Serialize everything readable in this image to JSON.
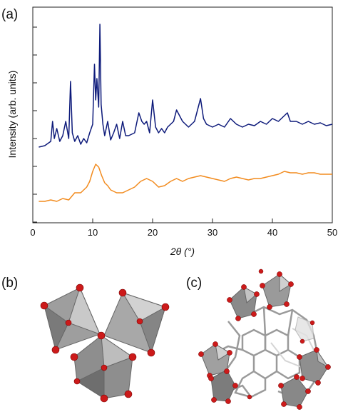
{
  "panels": {
    "a": "(a)",
    "b": "(b)",
    "c": "(c)"
  },
  "chart_data": {
    "type": "line",
    "xlabel": "2θ (°)",
    "ylabel": "Intensity (arb. units)",
    "xlim": [
      0,
      50
    ],
    "xticks": [
      0,
      10,
      20,
      30,
      40,
      50
    ],
    "ytick_labels": false,
    "grid": false,
    "series": [
      {
        "color": "#0d1a7a",
        "x": [
          1,
          2,
          3,
          3.3,
          3.6,
          4,
          4.5,
          5,
          5.5,
          6,
          6.3,
          6.6,
          7,
          7.5,
          8,
          8.5,
          9,
          9.5,
          10,
          10.3,
          10.5,
          10.7,
          11,
          11.2,
          11.4,
          11.7,
          12,
          12.5,
          13,
          13.5,
          14,
          14.5,
          15,
          15.5,
          16,
          17,
          17.7,
          18.2,
          18.6,
          19,
          19.5,
          20,
          20.5,
          21,
          21.5,
          22,
          22.5,
          23,
          23.5,
          24,
          25,
          26,
          27,
          27.5,
          28,
          28.5,
          29,
          30,
          31,
          32,
          33,
          34,
          35,
          36,
          37,
          38,
          39,
          40,
          41,
          42,
          42.5,
          43,
          44,
          45,
          46,
          47,
          48,
          49,
          50
        ],
        "y": [
          0.12,
          0.13,
          0.16,
          0.3,
          0.18,
          0.25,
          0.16,
          0.2,
          0.3,
          0.18,
          0.58,
          0.22,
          0.16,
          0.2,
          0.14,
          0.18,
          0.15,
          0.22,
          0.28,
          0.7,
          0.45,
          0.6,
          0.4,
          0.98,
          0.42,
          0.28,
          0.2,
          0.3,
          0.17,
          0.22,
          0.28,
          0.18,
          0.3,
          0.2,
          0.2,
          0.22,
          0.36,
          0.3,
          0.28,
          0.3,
          0.22,
          0.45,
          0.26,
          0.22,
          0.25,
          0.22,
          0.26,
          0.28,
          0.3,
          0.38,
          0.3,
          0.26,
          0.3,
          0.38,
          0.46,
          0.32,
          0.28,
          0.26,
          0.28,
          0.26,
          0.32,
          0.28,
          0.26,
          0.28,
          0.27,
          0.3,
          0.28,
          0.32,
          0.3,
          0.34,
          0.36,
          0.3,
          0.3,
          0.28,
          0.3,
          0.28,
          0.29,
          0.27,
          0.28
        ]
      },
      {
        "color": "#f28b1e",
        "x": [
          1,
          2,
          3,
          4,
          5,
          6,
          7,
          8,
          9,
          9.5,
          10,
          10.5,
          11,
          11.5,
          12,
          12.5,
          13,
          14,
          15,
          16,
          17,
          18,
          19,
          20,
          21,
          22,
          23,
          24,
          25,
          26,
          27,
          28,
          29,
          30,
          31,
          32,
          33,
          34,
          35,
          36,
          37,
          38,
          39,
          40,
          41,
          42,
          43,
          44,
          45,
          46,
          47,
          48,
          49,
          50
        ],
        "y": [
          -0.26,
          -0.26,
          -0.25,
          -0.26,
          -0.24,
          -0.25,
          -0.2,
          -0.2,
          -0.16,
          -0.12,
          -0.05,
          0.0,
          -0.02,
          -0.08,
          -0.13,
          -0.15,
          -0.18,
          -0.2,
          -0.2,
          -0.18,
          -0.16,
          -0.12,
          -0.1,
          -0.12,
          -0.16,
          -0.15,
          -0.12,
          -0.1,
          -0.12,
          -0.1,
          -0.09,
          -0.08,
          -0.09,
          -0.1,
          -0.11,
          -0.12,
          -0.1,
          -0.09,
          -0.1,
          -0.11,
          -0.1,
          -0.1,
          -0.09,
          -0.08,
          -0.07,
          -0.05,
          -0.06,
          -0.06,
          -0.07,
          -0.06,
          -0.06,
          -0.07,
          -0.07,
          -0.07
        ]
      }
    ]
  }
}
